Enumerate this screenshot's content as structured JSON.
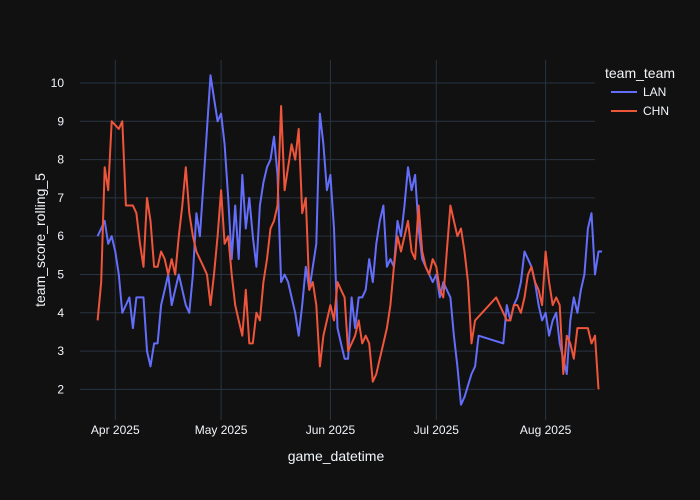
{
  "chart_data": {
    "type": "line",
    "xlabel": "game_datetime",
    "ylabel": "team_score_rolling_5",
    "x_axis_type": "date",
    "xlim": [
      "2025-03-22",
      "2025-08-15"
    ],
    "ylim": [
      1.2,
      10.6
    ],
    "x_ticks": [
      {
        "date": "2025-04-01",
        "label": "Apr 2025"
      },
      {
        "date": "2025-05-01",
        "label": "May 2025"
      },
      {
        "date": "2025-06-01",
        "label": "Jun 2025"
      },
      {
        "date": "2025-07-01",
        "label": "Jul 2025"
      },
      {
        "date": "2025-08-01",
        "label": "Aug 2025"
      }
    ],
    "y_ticks": [
      2,
      3,
      4,
      5,
      6,
      7,
      8,
      9,
      10
    ],
    "grid": true,
    "legend": {
      "title": "team_team",
      "placement": "top-right"
    },
    "series": [
      {
        "name": "LAN",
        "color": "#636efa",
        "points": [
          [
            "2025-03-27",
            6.0
          ],
          [
            "2025-03-28",
            6.2
          ],
          [
            "2025-03-29",
            6.4
          ],
          [
            "2025-03-30",
            5.8
          ],
          [
            "2025-03-31",
            6.0
          ],
          [
            "2025-04-01",
            5.6
          ],
          [
            "2025-04-02",
            5.0
          ],
          [
            "2025-04-03",
            4.0
          ],
          [
            "2025-04-04",
            4.2
          ],
          [
            "2025-04-05",
            4.4
          ],
          [
            "2025-04-06",
            3.6
          ],
          [
            "2025-04-07",
            4.4
          ],
          [
            "2025-04-08",
            4.4
          ],
          [
            "2025-04-09",
            4.4
          ],
          [
            "2025-04-10",
            3.0
          ],
          [
            "2025-04-11",
            2.6
          ],
          [
            "2025-04-12",
            3.2
          ],
          [
            "2025-04-13",
            3.2
          ],
          [
            "2025-04-14",
            4.2
          ],
          [
            "2025-04-15",
            4.6
          ],
          [
            "2025-04-16",
            5.0
          ],
          [
            "2025-04-17",
            4.2
          ],
          [
            "2025-04-18",
            4.6
          ],
          [
            "2025-04-19",
            5.0
          ],
          [
            "2025-04-20",
            4.6
          ],
          [
            "2025-04-21",
            4.2
          ],
          [
            "2025-04-22",
            4.0
          ],
          [
            "2025-04-23",
            5.0
          ],
          [
            "2025-04-24",
            6.6
          ],
          [
            "2025-04-25",
            6.0
          ],
          [
            "2025-04-26",
            7.4
          ],
          [
            "2025-04-27",
            8.8
          ],
          [
            "2025-04-28",
            10.2
          ],
          [
            "2025-04-29",
            9.6
          ],
          [
            "2025-04-30",
            9.0
          ],
          [
            "2025-05-01",
            9.2
          ],
          [
            "2025-05-02",
            8.4
          ],
          [
            "2025-05-03",
            7.0
          ],
          [
            "2025-05-04",
            5.4
          ],
          [
            "2025-05-05",
            6.8
          ],
          [
            "2025-05-06",
            5.4
          ],
          [
            "2025-05-07",
            7.6
          ],
          [
            "2025-05-08",
            6.2
          ],
          [
            "2025-05-09",
            7.0
          ],
          [
            "2025-05-10",
            6.0
          ],
          [
            "2025-05-11",
            5.2
          ],
          [
            "2025-05-12",
            6.8
          ],
          [
            "2025-05-13",
            7.4
          ],
          [
            "2025-05-14",
            7.8
          ],
          [
            "2025-05-15",
            8.0
          ],
          [
            "2025-05-16",
            8.6
          ],
          [
            "2025-05-17",
            7.6
          ],
          [
            "2025-05-18",
            4.8
          ],
          [
            "2025-05-19",
            5.0
          ],
          [
            "2025-05-20",
            4.8
          ],
          [
            "2025-05-21",
            4.4
          ],
          [
            "2025-05-22",
            4.0
          ],
          [
            "2025-05-23",
            3.4
          ],
          [
            "2025-05-24",
            4.2
          ],
          [
            "2025-05-25",
            5.2
          ],
          [
            "2025-05-26",
            4.6
          ],
          [
            "2025-05-27",
            5.2
          ],
          [
            "2025-05-28",
            5.8
          ],
          [
            "2025-05-29",
            9.2
          ],
          [
            "2025-05-30",
            8.4
          ],
          [
            "2025-05-31",
            7.2
          ],
          [
            "2025-06-01",
            7.6
          ],
          [
            "2025-06-02",
            6.2
          ],
          [
            "2025-06-03",
            3.6
          ],
          [
            "2025-06-04",
            3.2
          ],
          [
            "2025-06-05",
            2.8
          ],
          [
            "2025-06-06",
            2.8
          ],
          [
            "2025-06-07",
            4.4
          ],
          [
            "2025-06-08",
            3.6
          ],
          [
            "2025-06-09",
            4.4
          ],
          [
            "2025-06-10",
            4.4
          ],
          [
            "2025-06-11",
            4.6
          ],
          [
            "2025-06-12",
            5.4
          ],
          [
            "2025-06-13",
            4.8
          ],
          [
            "2025-06-14",
            5.8
          ],
          [
            "2025-06-15",
            6.4
          ],
          [
            "2025-06-16",
            6.8
          ],
          [
            "2025-06-17",
            5.2
          ],
          [
            "2025-06-18",
            5.4
          ],
          [
            "2025-06-19",
            5.2
          ],
          [
            "2025-06-20",
            6.4
          ],
          [
            "2025-06-21",
            6.0
          ],
          [
            "2025-06-22",
            6.8
          ],
          [
            "2025-06-23",
            7.8
          ],
          [
            "2025-06-24",
            7.2
          ],
          [
            "2025-06-25",
            7.6
          ],
          [
            "2025-06-26",
            6.2
          ],
          [
            "2025-06-27",
            5.4
          ],
          [
            "2025-06-28",
            5.2
          ],
          [
            "2025-06-29",
            5.0
          ],
          [
            "2025-06-30",
            4.8
          ],
          [
            "2025-07-01",
            5.0
          ],
          [
            "2025-07-02",
            4.4
          ],
          [
            "2025-07-03",
            4.8
          ],
          [
            "2025-07-04",
            4.6
          ],
          [
            "2025-07-05",
            4.4
          ],
          [
            "2025-07-06",
            3.4
          ],
          [
            "2025-07-07",
            2.6
          ],
          [
            "2025-07-08",
            1.6
          ],
          [
            "2025-07-09",
            1.8
          ],
          [
            "2025-07-11",
            2.4
          ],
          [
            "2025-07-12",
            2.6
          ],
          [
            "2025-07-13",
            3.4
          ],
          [
            "2025-07-20",
            3.2
          ],
          [
            "2025-07-21",
            4.2
          ],
          [
            "2025-07-22",
            3.8
          ],
          [
            "2025-07-23",
            4.2
          ],
          [
            "2025-07-24",
            4.4
          ],
          [
            "2025-07-25",
            4.8
          ],
          [
            "2025-07-26",
            5.6
          ],
          [
            "2025-07-27",
            5.4
          ],
          [
            "2025-07-28",
            5.2
          ],
          [
            "2025-07-29",
            4.8
          ],
          [
            "2025-07-30",
            4.2
          ],
          [
            "2025-07-31",
            3.8
          ],
          [
            "2025-08-01",
            4.0
          ],
          [
            "2025-08-02",
            3.4
          ],
          [
            "2025-08-03",
            3.8
          ],
          [
            "2025-08-04",
            4.0
          ],
          [
            "2025-08-05",
            3.2
          ],
          [
            "2025-08-06",
            2.8
          ],
          [
            "2025-08-07",
            2.4
          ],
          [
            "2025-08-08",
            3.8
          ],
          [
            "2025-08-09",
            4.4
          ],
          [
            "2025-08-10",
            4.0
          ],
          [
            "2025-08-11",
            4.6
          ],
          [
            "2025-08-12",
            5.0
          ],
          [
            "2025-08-13",
            6.2
          ],
          [
            "2025-08-14",
            6.6
          ],
          [
            "2025-08-15",
            5.0
          ],
          [
            "2025-08-16",
            5.6
          ],
          [
            "2025-08-17",
            5.6
          ]
        ]
      },
      {
        "name": "CHN",
        "color": "#ef553b",
        "points": [
          [
            "2025-03-27",
            3.8
          ],
          [
            "2025-03-28",
            4.8
          ],
          [
            "2025-03-29",
            7.8
          ],
          [
            "2025-03-30",
            7.2
          ],
          [
            "2025-03-31",
            9.0
          ],
          [
            "2025-04-02",
            8.8
          ],
          [
            "2025-04-03",
            9.0
          ],
          [
            "2025-04-04",
            6.8
          ],
          [
            "2025-04-05",
            6.8
          ],
          [
            "2025-04-06",
            6.8
          ],
          [
            "2025-04-07",
            6.6
          ],
          [
            "2025-04-08",
            5.8
          ],
          [
            "2025-04-09",
            5.2
          ],
          [
            "2025-04-10",
            7.0
          ],
          [
            "2025-04-11",
            6.4
          ],
          [
            "2025-04-12",
            5.2
          ],
          [
            "2025-04-13",
            5.2
          ],
          [
            "2025-04-14",
            5.6
          ],
          [
            "2025-04-15",
            5.4
          ],
          [
            "2025-04-16",
            5.0
          ],
          [
            "2025-04-17",
            5.4
          ],
          [
            "2025-04-18",
            5.0
          ],
          [
            "2025-04-19",
            6.0
          ],
          [
            "2025-04-20",
            6.8
          ],
          [
            "2025-04-21",
            7.8
          ],
          [
            "2025-04-22",
            6.6
          ],
          [
            "2025-04-23",
            6.0
          ],
          [
            "2025-04-24",
            5.6
          ],
          [
            "2025-04-25",
            5.4
          ],
          [
            "2025-04-26",
            5.2
          ],
          [
            "2025-04-27",
            5.0
          ],
          [
            "2025-04-28",
            4.2
          ],
          [
            "2025-04-29",
            5.0
          ],
          [
            "2025-04-30",
            6.0
          ],
          [
            "2025-05-01",
            7.2
          ],
          [
            "2025-05-02",
            5.8
          ],
          [
            "2025-05-03",
            6.0
          ],
          [
            "2025-05-04",
            5.0
          ],
          [
            "2025-05-05",
            4.2
          ],
          [
            "2025-05-06",
            3.8
          ],
          [
            "2025-05-07",
            3.4
          ],
          [
            "2025-05-08",
            4.6
          ],
          [
            "2025-05-09",
            3.2
          ],
          [
            "2025-05-10",
            3.2
          ],
          [
            "2025-05-11",
            4.0
          ],
          [
            "2025-05-12",
            3.8
          ],
          [
            "2025-05-13",
            4.8
          ],
          [
            "2025-05-14",
            5.4
          ],
          [
            "2025-05-15",
            6.2
          ],
          [
            "2025-05-16",
            6.4
          ],
          [
            "2025-05-17",
            6.8
          ],
          [
            "2025-05-18",
            9.4
          ],
          [
            "2025-05-19",
            7.2
          ],
          [
            "2025-05-20",
            7.8
          ],
          [
            "2025-05-21",
            8.4
          ],
          [
            "2025-05-22",
            8.0
          ],
          [
            "2025-05-23",
            8.8
          ],
          [
            "2025-05-24",
            6.6
          ],
          [
            "2025-05-25",
            7.0
          ],
          [
            "2025-05-26",
            4.6
          ],
          [
            "2025-05-27",
            4.8
          ],
          [
            "2025-05-28",
            4.2
          ],
          [
            "2025-05-29",
            2.6
          ],
          [
            "2025-05-30",
            3.4
          ],
          [
            "2025-05-31",
            3.8
          ],
          [
            "2025-06-01",
            4.2
          ],
          [
            "2025-06-02",
            3.8
          ],
          [
            "2025-06-03",
            4.8
          ],
          [
            "2025-06-04",
            4.6
          ],
          [
            "2025-06-05",
            4.4
          ],
          [
            "2025-06-06",
            3.0
          ],
          [
            "2025-06-07",
            3.2
          ],
          [
            "2025-06-08",
            3.4
          ],
          [
            "2025-06-09",
            3.8
          ],
          [
            "2025-06-10",
            3.2
          ],
          [
            "2025-06-11",
            3.4
          ],
          [
            "2025-06-12",
            3.2
          ],
          [
            "2025-06-13",
            2.2
          ],
          [
            "2025-06-14",
            2.4
          ],
          [
            "2025-06-15",
            2.8
          ],
          [
            "2025-06-16",
            3.2
          ],
          [
            "2025-06-17",
            3.6
          ],
          [
            "2025-06-18",
            4.2
          ],
          [
            "2025-06-19",
            5.2
          ],
          [
            "2025-06-20",
            6.0
          ],
          [
            "2025-06-21",
            5.6
          ],
          [
            "2025-06-22",
            6.0
          ],
          [
            "2025-06-23",
            6.4
          ],
          [
            "2025-06-24",
            5.6
          ],
          [
            "2025-06-25",
            5.4
          ],
          [
            "2025-06-26",
            6.8
          ],
          [
            "2025-06-27",
            5.6
          ],
          [
            "2025-06-28",
            5.2
          ],
          [
            "2025-06-29",
            5.0
          ],
          [
            "2025-06-30",
            5.4
          ],
          [
            "2025-07-01",
            5.2
          ],
          [
            "2025-07-02",
            4.6
          ],
          [
            "2025-07-03",
            4.4
          ],
          [
            "2025-07-04",
            5.6
          ],
          [
            "2025-07-05",
            6.8
          ],
          [
            "2025-07-06",
            6.4
          ],
          [
            "2025-07-07",
            6.0
          ],
          [
            "2025-07-08",
            6.2
          ],
          [
            "2025-07-09",
            5.6
          ],
          [
            "2025-07-10",
            4.8
          ],
          [
            "2025-07-11",
            3.2
          ],
          [
            "2025-07-12",
            3.8
          ],
          [
            "2025-07-14",
            4.0
          ],
          [
            "2025-07-16",
            4.2
          ],
          [
            "2025-07-18",
            4.4
          ],
          [
            "2025-07-20",
            4.0
          ],
          [
            "2025-07-21",
            3.8
          ],
          [
            "2025-07-22",
            3.8
          ],
          [
            "2025-07-23",
            4.2
          ],
          [
            "2025-07-24",
            4.2
          ],
          [
            "2025-07-25",
            4.0
          ],
          [
            "2025-07-26",
            4.4
          ],
          [
            "2025-07-27",
            5.0
          ],
          [
            "2025-07-28",
            5.2
          ],
          [
            "2025-07-29",
            4.8
          ],
          [
            "2025-07-30",
            4.6
          ],
          [
            "2025-07-31",
            4.2
          ],
          [
            "2025-08-01",
            5.6
          ],
          [
            "2025-08-02",
            4.8
          ],
          [
            "2025-08-03",
            4.2
          ],
          [
            "2025-08-04",
            4.4
          ],
          [
            "2025-08-05",
            4.2
          ],
          [
            "2025-08-06",
            2.4
          ],
          [
            "2025-08-07",
            3.4
          ],
          [
            "2025-08-08",
            3.2
          ],
          [
            "2025-08-09",
            2.8
          ],
          [
            "2025-08-10",
            3.6
          ],
          [
            "2025-08-11",
            3.6
          ],
          [
            "2025-08-12",
            3.6
          ],
          [
            "2025-08-13",
            3.6
          ],
          [
            "2025-08-14",
            3.2
          ],
          [
            "2025-08-15",
            3.4
          ],
          [
            "2025-08-16",
            2.0
          ]
        ]
      }
    ]
  }
}
